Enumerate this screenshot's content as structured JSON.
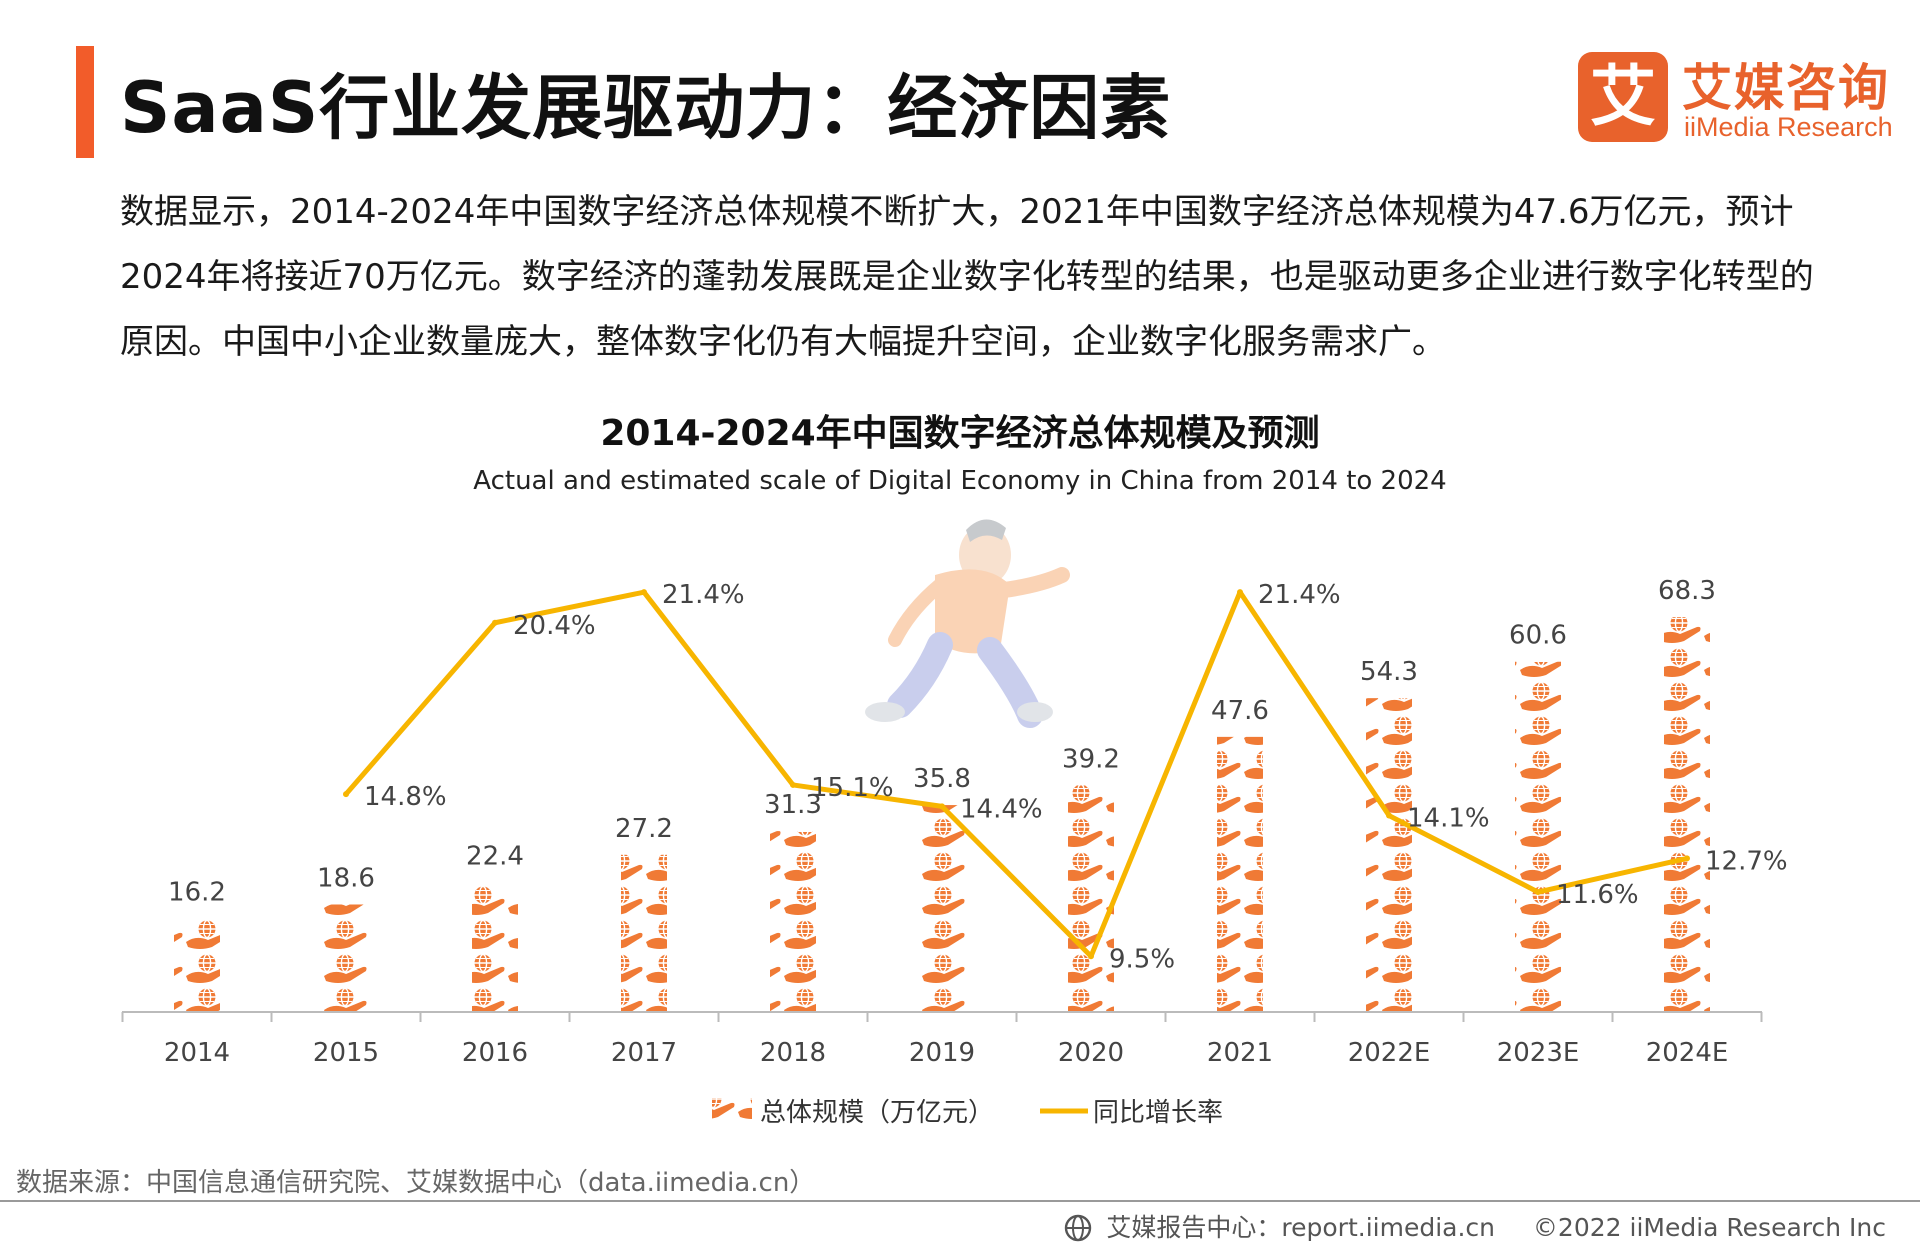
{
  "page": {
    "title": "SaaS行业发展驱动力：经济因素",
    "intro": "数据显示，2014-2024年中国数字经济总体规模不断扩大，2021年中国数字经济总体规模为47.6万亿元，预计2024年将接近70万亿元。数字经济的蓬勃发展既是企业数字化转型的结果，也是驱动更多企业进行数字化转型的原因。中国中小企业数量庞大，整体数字化仍有大幅提升空间，企业数字化服务需求广。"
  },
  "logo": {
    "mark": "艾",
    "cn": "艾媒咨询",
    "en": "iiMedia Research"
  },
  "chart_data": {
    "type": "bar",
    "title": "2014-2024年中国数字经济总体规模及预测",
    "subtitle": "Actual and estimated scale of Digital Economy in China  from 2014 to 2024",
    "categories": [
      "2014",
      "2015",
      "2016",
      "2017",
      "2018",
      "2019",
      "2020",
      "2021",
      "2022E",
      "2023E",
      "2024E"
    ],
    "series": [
      {
        "name": "总体规模（万亿元）",
        "type": "bar",
        "values": [
          16.2,
          18.6,
          22.4,
          27.2,
          31.3,
          35.8,
          39.2,
          47.6,
          54.3,
          60.6,
          68.3
        ],
        "labels": [
          "16.2",
          "18.6",
          "22.4",
          "27.2",
          "31.3",
          "35.8",
          "39.2",
          "47.6",
          "54.3",
          "60.6",
          "68.3"
        ]
      },
      {
        "name": "同比增长率",
        "type": "line",
        "values": [
          null,
          14.8,
          20.4,
          21.4,
          15.1,
          14.4,
          9.5,
          21.4,
          14.1,
          11.6,
          12.7
        ],
        "labels": [
          "",
          "14.8%",
          "20.4%",
          "21.4%",
          "15.1%",
          "14.4%",
          "9.5%",
          "21.4%",
          "14.1%",
          "11.6%",
          "12.7%"
        ]
      }
    ],
    "legend_position": "bottom-center",
    "grid": false,
    "colors": {
      "bar": "#f07a35",
      "line": "#f7b500",
      "axis": "#bbbbbb",
      "label": "#444444"
    }
  },
  "footer": {
    "source": "数据来源：中国信息通信研究院、艾媒数据中心（data.iimedia.cn）",
    "report": "艾媒报告中心：report.iimedia.cn",
    "copyright": "©2022 iiMedia Research Inc"
  }
}
